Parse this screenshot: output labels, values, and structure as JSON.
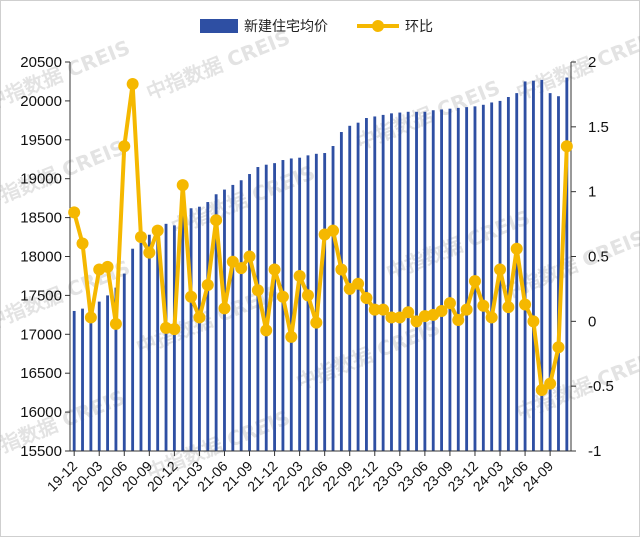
{
  "chart_data": {
    "type": "bar+line",
    "watermark": "中指数据 CREIS",
    "x_tick_labels": [
      "19-12",
      "20-03",
      "20-06",
      "20-09",
      "20-12",
      "21-03",
      "21-06",
      "21-09",
      "21-12",
      "22-03",
      "22-06",
      "22-09",
      "22-12",
      "23-03",
      "23-06",
      "23-09",
      "23-12",
      "24-03",
      "24-06",
      "24-09"
    ],
    "x": [
      "19-12",
      "20-01",
      "20-02",
      "20-03",
      "20-04",
      "20-05",
      "20-06",
      "20-07",
      "20-08",
      "20-09",
      "20-10",
      "20-11",
      "20-12",
      "21-01",
      "21-02",
      "21-03",
      "21-04",
      "21-05",
      "21-06",
      "21-07",
      "21-08",
      "21-09",
      "21-10",
      "21-11",
      "21-12",
      "22-01",
      "22-02",
      "22-03",
      "22-04",
      "22-05",
      "22-06",
      "22-07",
      "22-08",
      "22-09",
      "22-10",
      "22-11",
      "22-12",
      "23-01",
      "23-02",
      "23-03",
      "23-04",
      "23-05",
      "23-06",
      "23-07",
      "23-08",
      "23-09",
      "23-10",
      "23-11",
      "23-12",
      "24-01",
      "24-02",
      "24-03",
      "24-04",
      "24-05",
      "24-06",
      "24-07",
      "24-08",
      "24-09",
      "24-10",
      "24-11"
    ],
    "series": [
      {
        "name": "新建住宅均价",
        "type": "bar",
        "axis": "left",
        "color": "#2E4FA3",
        "values": [
          17300,
          17330,
          17340,
          17420,
          17500,
          17600,
          17780,
          18100,
          18220,
          18280,
          18340,
          18420,
          18400,
          18600,
          18620,
          18640,
          18700,
          18800,
          18860,
          18920,
          18980,
          19060,
          19150,
          19180,
          19200,
          19240,
          19260,
          19270,
          19300,
          19320,
          19330,
          19420,
          19600,
          19680,
          19720,
          19780,
          19800,
          19820,
          19840,
          19850,
          19860,
          19860,
          19860,
          19880,
          19890,
          19900,
          19910,
          19920,
          19930,
          19950,
          19980,
          20000,
          20050,
          20100,
          20250,
          20260,
          20270,
          20100,
          20060,
          20300
        ]
      },
      {
        "name": "环比",
        "type": "line",
        "axis": "right",
        "color": "#F5B800",
        "values": [
          0.84,
          0.6,
          0.03,
          0.4,
          0.42,
          -0.02,
          1.35,
          1.83,
          0.65,
          0.53,
          0.7,
          -0.05,
          -0.06,
          1.05,
          0.19,
          0.03,
          0.28,
          0.78,
          0.1,
          0.46,
          0.41,
          0.5,
          0.24,
          -0.07,
          0.4,
          0.19,
          -0.12,
          0.35,
          0.2,
          -0.01,
          0.67,
          0.7,
          0.4,
          0.25,
          0.29,
          0.18,
          0.09,
          0.09,
          0.03,
          0.03,
          0.07,
          0.0,
          0.04,
          0.05,
          0.08,
          0.14,
          0.01,
          0.09,
          0.31,
          0.12,
          0.03,
          0.4,
          0.11,
          0.56,
          0.13,
          0.0,
          -0.53,
          -0.48,
          -0.2,
          1.35
        ]
      }
    ],
    "y_left": {
      "min": 15500,
      "max": 20500,
      "ticks": [
        "15500",
        "16000",
        "16500",
        "17000",
        "17500",
        "18000",
        "18500",
        "19000",
        "19500",
        "20000",
        "20500"
      ]
    },
    "y_right": {
      "min": -1,
      "max": 2,
      "ticks": [
        "-1",
        "-0.5",
        "0",
        "0.5",
        "1",
        "1.5",
        "2"
      ],
      "tick_values": [
        -1,
        -0.5,
        0,
        0.5,
        1,
        1.5,
        2
      ]
    },
    "legend": {
      "position": "top-center",
      "items": [
        "新建住宅均价",
        "环比"
      ]
    },
    "grid": false
  }
}
